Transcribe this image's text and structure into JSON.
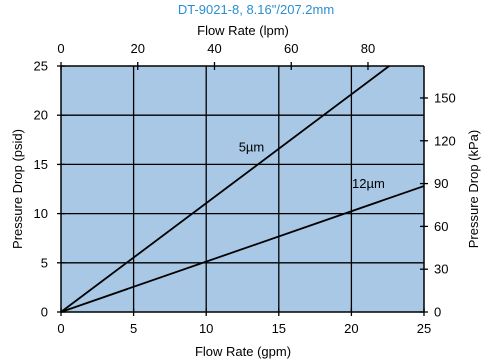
{
  "chart_data": {
    "type": "line",
    "title": "DT-9021-8, 8.16\"/207.2mm",
    "xlabel": "Flow Rate (gpm)",
    "ylabel": "Pressure Drop (psid)",
    "x2label": "Flow Rate (lpm)",
    "y2label": "Pressure Drop (kPa)",
    "xlim": [
      0,
      25
    ],
    "ylim": [
      0,
      25
    ],
    "x2lim": [
      0,
      94.6
    ],
    "y2lim": [
      0,
      172.4
    ],
    "xticks": [
      0,
      5,
      10,
      15,
      20,
      25
    ],
    "yticks": [
      0,
      5,
      10,
      15,
      20,
      25
    ],
    "x2ticks": [
      0,
      20,
      40,
      60,
      80
    ],
    "y2ticks": [
      0,
      30,
      60,
      90,
      120,
      150
    ],
    "grid": true,
    "colors": {
      "plot_bg": "#a9c8e6",
      "grid": "#000000",
      "line": "#000000",
      "title": "#2a8fd0"
    },
    "series": [
      {
        "name": "5µm",
        "x": [
          0,
          22.6
        ],
        "y": [
          0,
          25
        ]
      },
      {
        "name": "12µm",
        "x": [
          0,
          25
        ],
        "y": [
          0,
          12.8
        ]
      }
    ]
  }
}
